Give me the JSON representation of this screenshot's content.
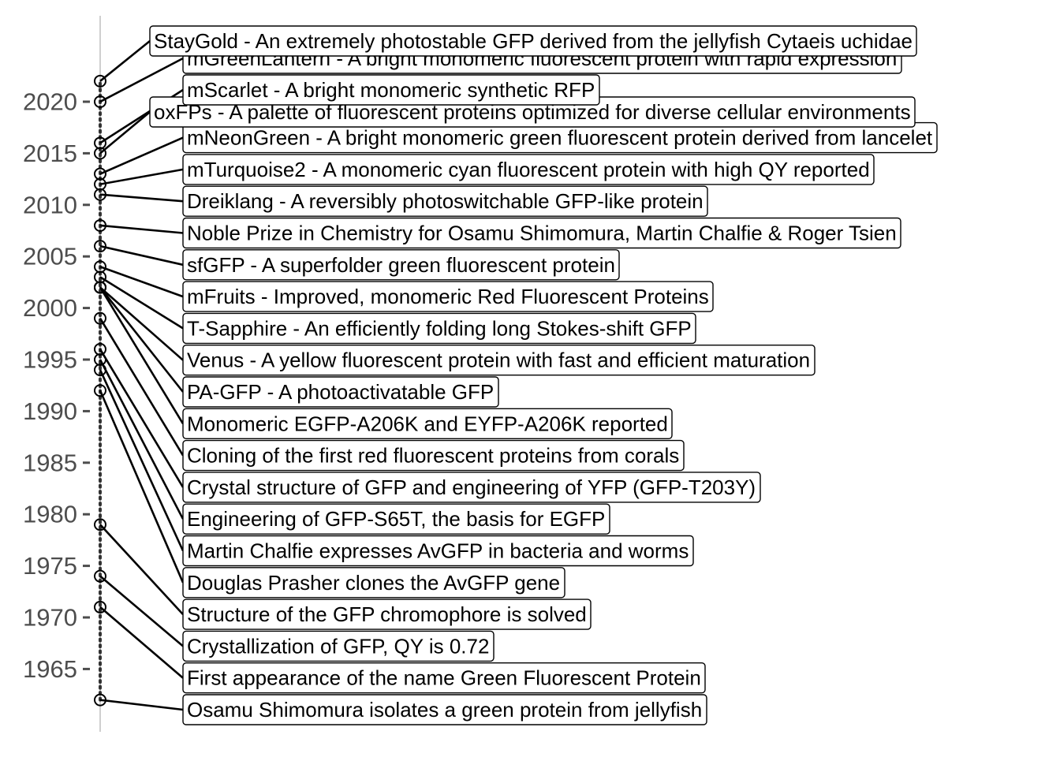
{
  "chart_data": {
    "type": "timeline",
    "title": "",
    "xlabel": "",
    "ylabel": "",
    "ylim": [
      1961,
      2025
    ],
    "y_ticks": [
      1965,
      1970,
      1975,
      1980,
      1985,
      1990,
      1995,
      2000,
      2005,
      2010,
      2015,
      2020
    ],
    "grid": false,
    "legend": "none",
    "colors": {
      "line": "#000000",
      "axis": "#bfbfbf",
      "tick_text": "#4d4d4d",
      "box_fill": "#ffffff"
    },
    "events": [
      {
        "year": 1962,
        "label": "Osamu Shimomura isolates a green protein from jellyfish"
      },
      {
        "year": 1971,
        "label": "First appearance of the name Green Fluorescent Protein"
      },
      {
        "year": 1974,
        "label": " Crystallization of GFP, QY is 0.72"
      },
      {
        "year": 1979,
        "label": "Structure of the GFP chromophore is solved"
      },
      {
        "year": 1992,
        "label": "Douglas Prasher clones the AvGFP gene"
      },
      {
        "year": 1994,
        "label": "Martin Chalfie expresses AvGFP in bacteria and worms"
      },
      {
        "year": 1995,
        "label": "Engineering of GFP-S65T, the basis for EGFP"
      },
      {
        "year": 1996,
        "label": "Crystal structure of GFP and engineering of YFP (GFP-T203Y)"
      },
      {
        "year": 1999,
        "label": "Cloning of the first red fluorescent proteins from corals"
      },
      {
        "year": 2002,
        "label": "Monomeric EGFP-A206K and EYFP-A206K reported "
      },
      {
        "year": 2002,
        "label": "PA-GFP - A photoactivatable GFP"
      },
      {
        "year": 2002,
        "label": "Venus - A yellow fluorescent protein with fast and efficient maturation"
      },
      {
        "year": 2003,
        "label": "T-Sapphire - An efficiently folding long Stokes-shift GFP"
      },
      {
        "year": 2004,
        "label": "mFruits - Improved, monomeric Red Fluorescent Proteins"
      },
      {
        "year": 2006,
        "label": "sfGFP - A superfolder green fluorescent protein"
      },
      {
        "year": 2008,
        "label": "Noble Prize in Chemistry for Osamu Shimomura, Martin Chalfie & Roger Tsien"
      },
      {
        "year": 2011,
        "label": "Dreiklang - A reversibly photoswitchable GFP-like protein"
      },
      {
        "year": 2012,
        "label": "mTurquoise2 - A monomeric cyan fluorescent protein with high QY reported"
      },
      {
        "year": 2013,
        "label": "mNeonGreen - A bright monomeric green fluorescent protein derived from lancelet"
      },
      {
        "year": 2015,
        "label": "oxFPs - A palette of fluorescent proteins optimized for diverse cellular environments"
      },
      {
        "year": 2016,
        "label": "mScarlet - A bright monomeric synthetic RFP"
      },
      {
        "year": 2020,
        "label": "mGreenLantern - A bright monomeric fluorescent protein with rapid expression"
      },
      {
        "year": 2022,
        "label": "StayGold - An extremely photostable GFP derived from the jellyfish Cytaeis uchidae"
      }
    ]
  }
}
